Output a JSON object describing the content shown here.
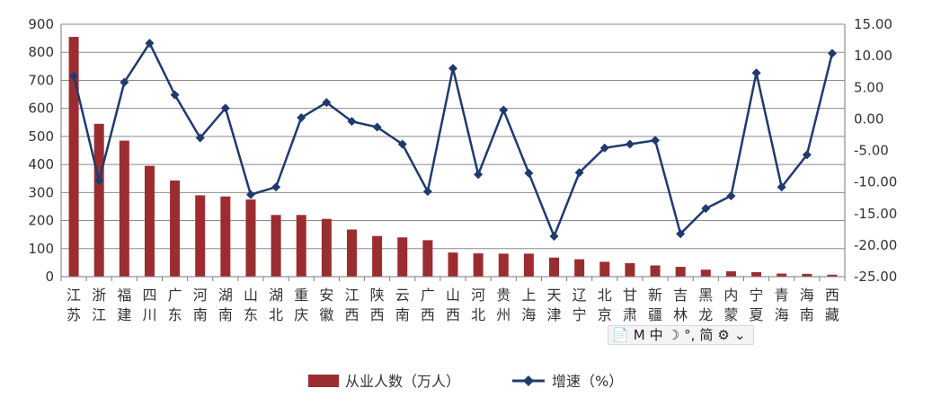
{
  "chart_data": {
    "type": "bar+line",
    "categories": [
      [
        "江",
        "苏"
      ],
      [
        "浙",
        "江"
      ],
      [
        "福",
        "建"
      ],
      [
        "四",
        "川"
      ],
      [
        "广",
        "东"
      ],
      [
        "河",
        "南"
      ],
      [
        "湖",
        "南"
      ],
      [
        "山",
        "东"
      ],
      [
        "湖",
        "北"
      ],
      [
        "重",
        "庆"
      ],
      [
        "安",
        "徽"
      ],
      [
        "江",
        "西"
      ],
      [
        "陕",
        "西"
      ],
      [
        "云",
        "南"
      ],
      [
        "广",
        "西"
      ],
      [
        "山",
        "西"
      ],
      [
        "河",
        "北"
      ],
      [
        "贵",
        "州"
      ],
      [
        "上",
        "海"
      ],
      [
        "天",
        "津"
      ],
      [
        "辽",
        "宁"
      ],
      [
        "北",
        "京"
      ],
      [
        "甘",
        "肃"
      ],
      [
        "新",
        "疆"
      ],
      [
        "吉",
        "林"
      ],
      [
        "黑",
        "龙"
      ],
      [
        "内",
        "蒙"
      ],
      [
        "宁",
        "夏"
      ],
      [
        "青",
        "海"
      ],
      [
        "海",
        "南"
      ],
      [
        "西",
        "藏"
      ]
    ],
    "series": [
      {
        "name": "从业人数（万人）",
        "type": "bar",
        "axis": "left",
        "color": "#9b2d30",
        "values": [
          855,
          545,
          485,
          395,
          343,
          290,
          286,
          275,
          220,
          220,
          206,
          168,
          145,
          140,
          130,
          86,
          83,
          82,
          82,
          68,
          62,
          53,
          48,
          40,
          35,
          25,
          19,
          16,
          11,
          10,
          7
        ]
      },
      {
        "name": "增速（%）",
        "type": "line",
        "axis": "right",
        "color": "#1f3a6e",
        "values": [
          6.8,
          -9.8,
          5.8,
          12.0,
          3.8,
          -3.0,
          1.7,
          -12.0,
          -10.8,
          0.2,
          2.6,
          -0.4,
          -1.3,
          -4.0,
          -11.5,
          8.0,
          -8.8,
          1.4,
          -8.6,
          -18.6,
          -8.5,
          -4.6,
          -4.0,
          -3.4,
          -18.2,
          -14.2,
          -12.2,
          7.3,
          -10.8,
          -5.7,
          10.4
        ]
      }
    ],
    "yaxis_left": {
      "min": 0,
      "max": 900,
      "step": 100,
      "ticks": [
        "0",
        "100",
        "200",
        "300",
        "400",
        "500",
        "600",
        "700",
        "800",
        "900"
      ]
    },
    "yaxis_right": {
      "min": -25,
      "max": 15,
      "step": 5,
      "ticks": [
        "-25.00",
        "-20.00",
        "-15.00",
        "-10.00",
        "-5.00",
        "0.00",
        "5.00",
        "10.00",
        "15.00"
      ]
    },
    "grid": true,
    "legend_position": "bottom"
  },
  "ime_toolbar": {
    "items": [
      "📄",
      "M",
      "中",
      "☽",
      "°,",
      "简",
      "⚙",
      "⌄"
    ]
  }
}
